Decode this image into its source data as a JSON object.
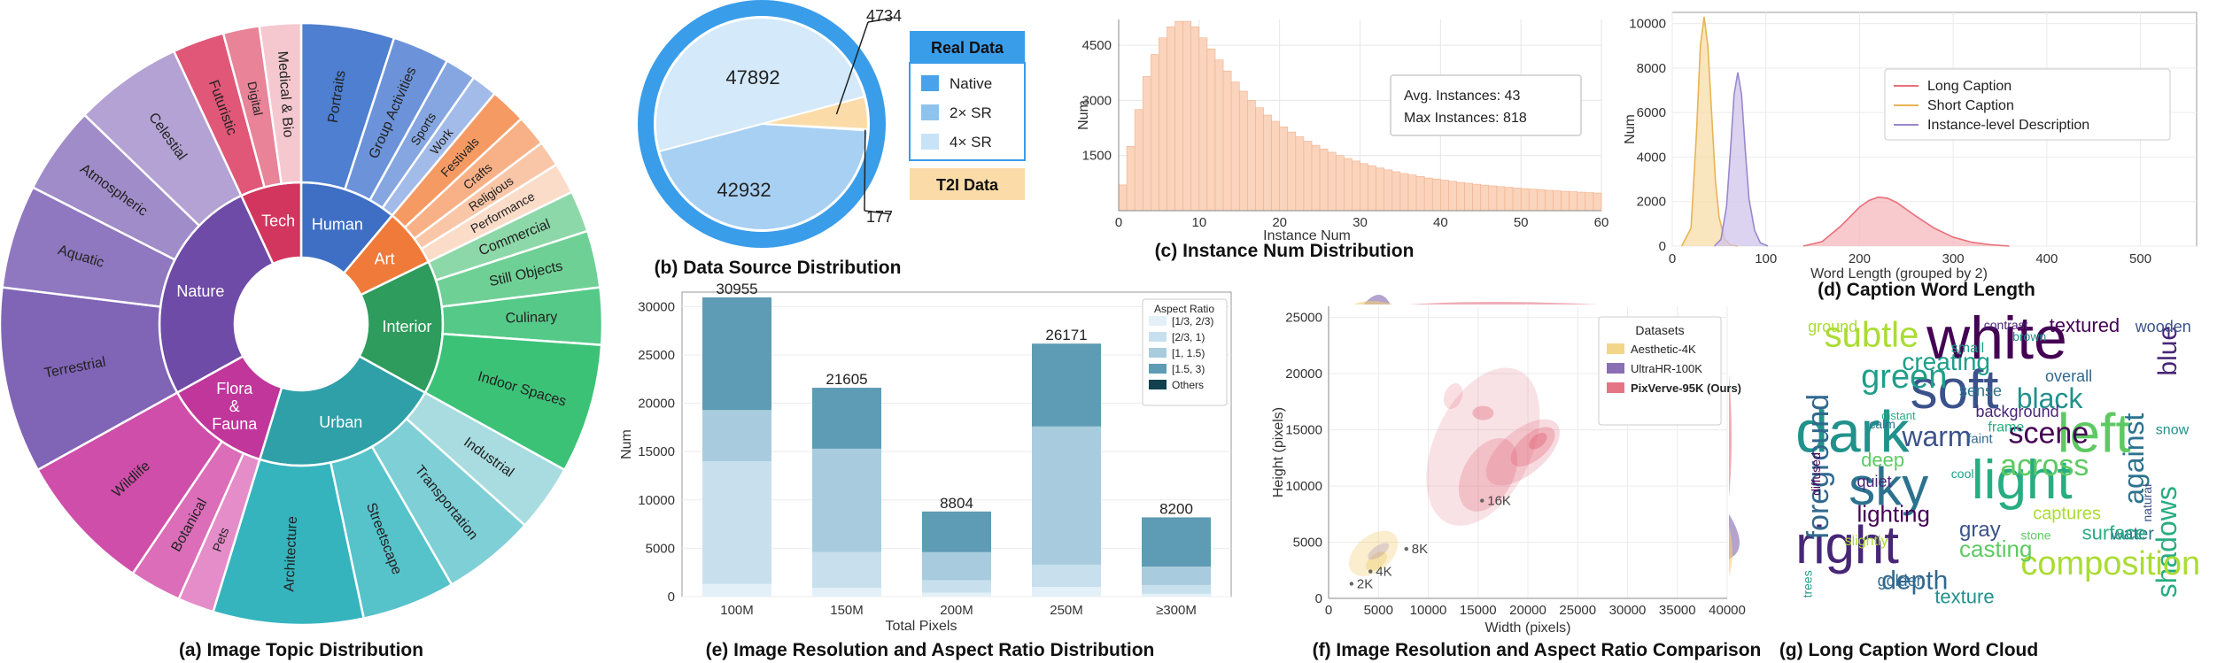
{
  "chart_data": [
    {
      "type": "sunburst",
      "panel": "a",
      "caption": "(a) Image Topic Distribution",
      "inner": [
        {
          "label": "Human",
          "start": 0,
          "end": 40,
          "color": "#3F6FC4"
        },
        {
          "label": "Art",
          "start": 40,
          "end": 64,
          "color": "#F07A3A"
        },
        {
          "label": "Interior",
          "start": 64,
          "end": 119,
          "color": "#2E9C5C"
        },
        {
          "label": "Urban",
          "start": 119,
          "end": 197,
          "color": "#2FA0A8"
        },
        {
          "label": "Flora & Fauna",
          "start": 197,
          "end": 241,
          "color": "#C0369B"
        },
        {
          "label": "Nature",
          "start": 241,
          "end": 335,
          "color": "#6E4BA6"
        },
        {
          "label": "Tech",
          "start": 335,
          "end": 360,
          "color": "#D2365E"
        }
      ],
      "outer": [
        {
          "label": "Portraits",
          "start": 0,
          "end": 18,
          "color": "#4E7FD0"
        },
        {
          "label": "Group Activities",
          "start": 18,
          "end": 29,
          "color": "#6C93DA"
        },
        {
          "label": "Sports",
          "start": 29,
          "end": 35,
          "color": "#85A6E0"
        },
        {
          "label": "Work",
          "start": 35,
          "end": 40,
          "color": "#A2BBE8"
        },
        {
          "label": "Festivals",
          "start": 40,
          "end": 47,
          "color": "#F69A64"
        },
        {
          "label": "Crafts",
          "start": 47,
          "end": 53,
          "color": "#F8B086"
        },
        {
          "label": "Religious",
          "start": 53,
          "end": 58,
          "color": "#F9C6A8"
        },
        {
          "label": "Performance",
          "start": 58,
          "end": 64,
          "color": "#FBDCC8"
        },
        {
          "label": "Commercial",
          "start": 64,
          "end": 72,
          "color": "#8CD8A8"
        },
        {
          "label": "Still Objects",
          "start": 72,
          "end": 83,
          "color": "#6FD096"
        },
        {
          "label": "Culinary",
          "start": 83,
          "end": 94,
          "color": "#55C987"
        },
        {
          "label": "Indoor Spaces",
          "start": 94,
          "end": 119,
          "color": "#3BC277"
        },
        {
          "label": "Industrial",
          "start": 119,
          "end": 132,
          "color": "#A8DCE0"
        },
        {
          "label": "Transportation",
          "start": 132,
          "end": 150,
          "color": "#7FCFD6"
        },
        {
          "label": "Streetscape",
          "start": 150,
          "end": 168,
          "color": "#56C2CA"
        },
        {
          "label": "Architecture",
          "start": 168,
          "end": 197,
          "color": "#35B4BE"
        },
        {
          "label": "Pets",
          "start": 197,
          "end": 204,
          "color": "#E58DC9"
        },
        {
          "label": "Botanical",
          "start": 204,
          "end": 214,
          "color": "#DB6DB9"
        },
        {
          "label": "Wildlife",
          "start": 214,
          "end": 241,
          "color": "#CF4EA9"
        },
        {
          "label": "Terrestrial",
          "start": 241,
          "end": 277,
          "color": "#8064B6"
        },
        {
          "label": "Aquatic",
          "start": 277,
          "end": 297,
          "color": "#8F78BF"
        },
        {
          "label": "Atmospheric",
          "start": 297,
          "end": 314,
          "color": "#A08CC8"
        },
        {
          "label": "Celestial",
          "start": 314,
          "end": 335,
          "color": "#B3A2D3"
        },
        {
          "label": "Futuristic",
          "start": 335,
          "end": 345,
          "color": "#E05778"
        },
        {
          "label": "Digital",
          "start": 345,
          "end": 352,
          "color": "#E88398"
        },
        {
          "label": "Medical & Bio",
          "start": 352,
          "end": 360,
          "color": "#F5C8D0"
        }
      ]
    },
    {
      "type": "pie",
      "panel": "b",
      "caption": "(b) Data Source Distribution",
      "values": [
        {
          "name": "Native",
          "value": 42932,
          "color": "#A8D0F3"
        },
        {
          "name": "4× SR",
          "value": 47892,
          "color": "#D4E9FA"
        },
        {
          "name": "T2I Data",
          "value": 4734,
          "color": "#FBDCA8"
        },
        {
          "name": "2× SR",
          "value": 177,
          "color": "#4AA3EA"
        }
      ],
      "ring_color": "#3A9DEA",
      "callouts": [
        "4734",
        "177"
      ],
      "legend": {
        "real_title": "Real Data",
        "items": [
          "Native",
          "2× SR",
          "4× SR"
        ],
        "t2i_title": "T2I Data"
      }
    },
    {
      "type": "histogram",
      "panel": "c",
      "caption": "(c) Instance Num Distribution",
      "xlabel": "Instance Num",
      "ylabel": "Num",
      "xlim": [
        0,
        60
      ],
      "ylim": [
        0,
        5200
      ],
      "xticks": [
        0,
        10,
        20,
        30,
        40,
        50,
        60
      ],
      "yticks": [
        1500,
        3000,
        4500
      ],
      "bin_width": 1,
      "values": [
        700,
        1750,
        2750,
        3650,
        4250,
        4700,
        5000,
        5150,
        5150,
        5000,
        4700,
        4400,
        4100,
        3800,
        3500,
        3250,
        3000,
        2800,
        2600,
        2430,
        2280,
        2140,
        2010,
        1890,
        1780,
        1680,
        1590,
        1500,
        1420,
        1350,
        1280,
        1220,
        1160,
        1110,
        1060,
        1010,
        970,
        930,
        890,
        860,
        830,
        800,
        770,
        745,
        720,
        695,
        675,
        655,
        635,
        615,
        600,
        585,
        570,
        555,
        540,
        528,
        516,
        504,
        492,
        480
      ],
      "annotation": [
        "Avg. Instances: 43",
        "Max Instances: 818"
      ]
    },
    {
      "type": "area",
      "panel": "d",
      "caption": "(d) Caption Word Length",
      "xlabel": "Word Length (grouped by 2)",
      "ylabel": "Num",
      "xlim": [
        0,
        560
      ],
      "ylim": [
        0,
        10500
      ],
      "xticks": [
        0,
        100,
        200,
        300,
        400,
        500
      ],
      "yticks": [
        0,
        2000,
        4000,
        6000,
        8000,
        10000
      ],
      "series": [
        {
          "name": "Long Caption",
          "color": "#E8707A",
          "fill": "#F5B8BC",
          "peak": {
            "x": 222,
            "y": 2200
          },
          "x": [
            140,
            160,
            180,
            200,
            210,
            220,
            230,
            240,
            260,
            280,
            300,
            320,
            340,
            360
          ],
          "y": [
            0,
            200,
            900,
            1750,
            2050,
            2200,
            2150,
            1950,
            1350,
            800,
            400,
            170,
            60,
            0
          ]
        },
        {
          "name": "Short Caption",
          "color": "#E8B454",
          "fill": "#F7DCA8",
          "x": [
            10,
            20,
            26,
            30,
            34,
            38,
            42,
            46,
            50,
            56,
            62,
            70
          ],
          "y": [
            0,
            800,
            5200,
            9000,
            10300,
            9000,
            6000,
            3000,
            1300,
            300,
            60,
            0
          ]
        },
        {
          "name": "Instance-level Description",
          "color": "#9A88CC",
          "fill": "#CFC4EA",
          "x": [
            45,
            52,
            58,
            62,
            66,
            70,
            74,
            78,
            82,
            88,
            94,
            102
          ],
          "y": [
            0,
            300,
            1800,
            4200,
            6800,
            7800,
            6800,
            4300,
            2100,
            700,
            150,
            0
          ]
        }
      ]
    },
    {
      "type": "bar",
      "panel": "e",
      "stacked": true,
      "caption": "(e) Image Resolution and Aspect Ratio Distribution",
      "xlabel": "Total Pixels",
      "ylabel": "Num",
      "ylim": [
        0,
        31500
      ],
      "yticks": [
        0,
        5000,
        10000,
        15000,
        20000,
        25000,
        30000
      ],
      "categories": [
        "100M",
        "150M",
        "200M",
        "250M",
        "≥300M"
      ],
      "totals": [
        30955,
        21605,
        8804,
        26171,
        8200
      ],
      "legend_title": "Aspect Ratio",
      "series": [
        {
          "name": "[1/3, 2/3)",
          "color": "#E3F0F8",
          "values": [
            1300,
            900,
            400,
            1000,
            300
          ]
        },
        {
          "name": "[2/3, 1)",
          "color": "#C8E0EE",
          "values": [
            12700,
            3700,
            1300,
            2300,
            900
          ]
        },
        {
          "name": "[1, 1.5)",
          "color": "#A8CCDE",
          "values": [
            5300,
            10700,
            2900,
            14300,
            1900
          ]
        },
        {
          "name": "[1.5, 3)",
          "color": "#5E9BB4",
          "values": [
            11655,
            6305,
            4204,
            8571,
            5100
          ]
        },
        {
          "name": "Others",
          "color": "#12414E",
          "values": [
            0,
            0,
            0,
            0,
            0
          ]
        }
      ]
    },
    {
      "type": "scatter",
      "panel": "f",
      "caption": "(f) Image Resolution and Aspect Ratio Comparison",
      "xlabel": "Width (pixels)",
      "ylabel": "Height (pixels)",
      "xlim": [
        0,
        40000
      ],
      "ylim": [
        0,
        26000
      ],
      "xticks": [
        0,
        5000,
        10000,
        15000,
        20000,
        25000,
        30000,
        35000,
        40000
      ],
      "yticks": [
        0,
        5000,
        10000,
        15000,
        20000,
        25000
      ],
      "legend_title": "Datasets",
      "series": [
        {
          "name": "Aesthetic-4K",
          "color": "#F0CE74"
        },
        {
          "name": "UltraHR-100K",
          "color": "#7656A8"
        },
        {
          "name": "PixVerve-95K (Ours)",
          "color": "#E05C70"
        }
      ],
      "markers": [
        {
          "label": "2K",
          "x": 2300,
          "y": 1300
        },
        {
          "label": "4K",
          "x": 4200,
          "y": 2400
        },
        {
          "label": "8K",
          "x": 7800,
          "y": 4400
        },
        {
          "label": "16K",
          "x": 15400,
          "y": 8700
        }
      ]
    },
    {
      "type": "wordcloud",
      "panel": "g",
      "caption": "(g) Long Caption Word Cloud",
      "words": [
        "white",
        "soft",
        "dark",
        "left",
        "sky",
        "light",
        "right",
        "subtle",
        "foreground",
        "green",
        "scene",
        "warm",
        "black",
        "across",
        "against",
        "shadows",
        "blue",
        "composition",
        "depth",
        "creating",
        "lighting",
        "gray",
        "texture",
        "casting",
        "water",
        "surface",
        "background",
        "captures",
        "overall",
        "small",
        "textured",
        "wooden",
        "brown",
        "deep",
        "sense",
        "frame",
        "quiet",
        "slightly",
        "golden",
        "trees",
        "diffused",
        "natural",
        "snow",
        "stone",
        "calm",
        "distant",
        "contrast",
        "ground",
        "faint",
        "cool"
      ]
    }
  ]
}
